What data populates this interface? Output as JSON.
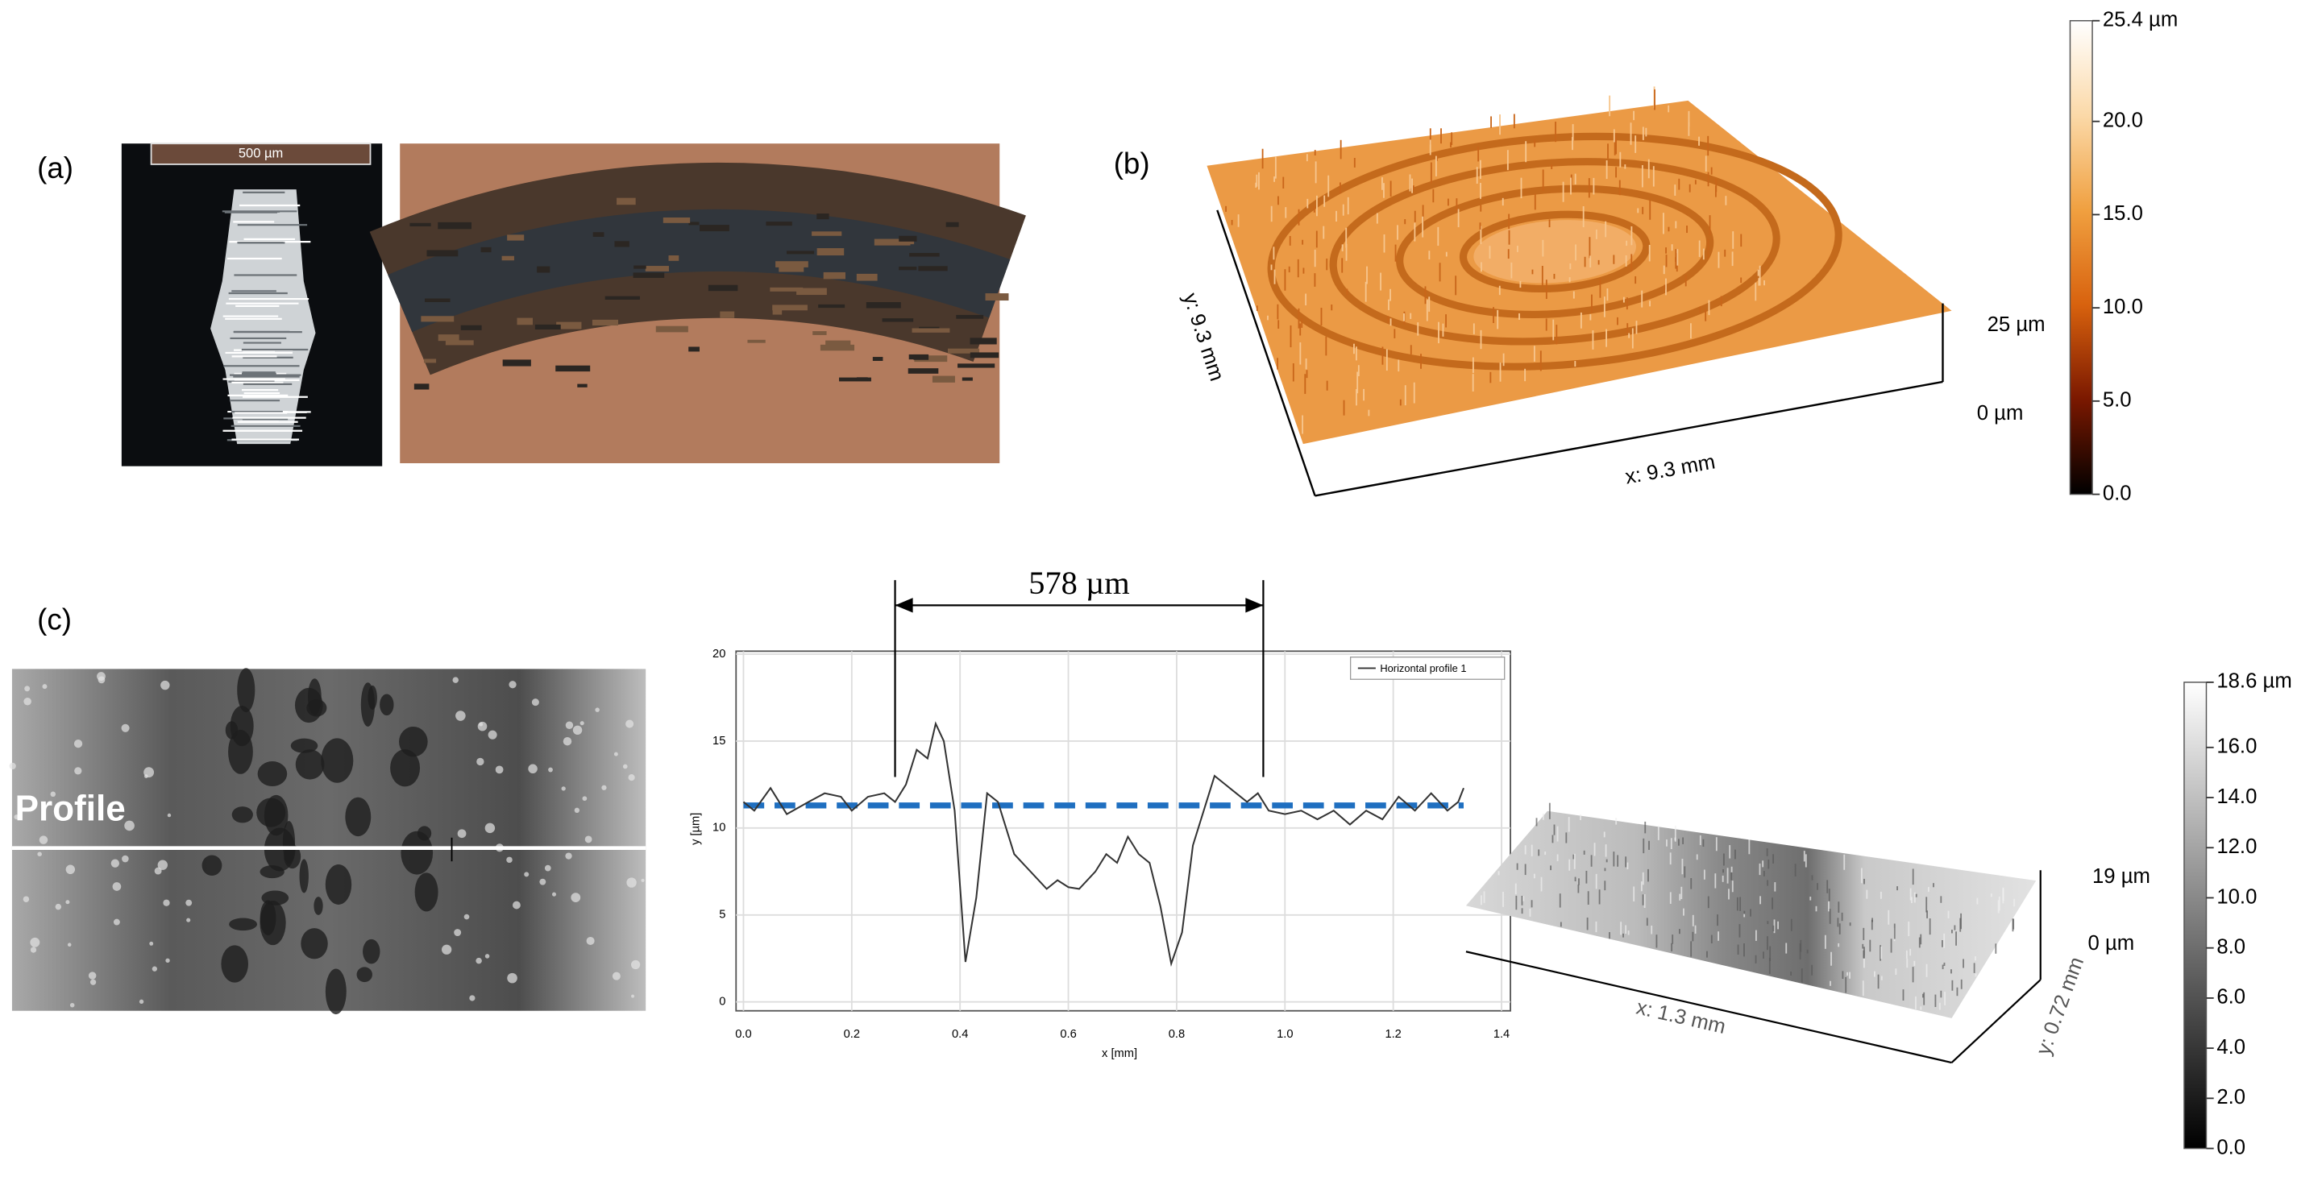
{
  "panel_a": {
    "label": "(a)",
    "scale_bar": "500 µm"
  },
  "panel_b": {
    "label": "(b)",
    "x_axis": "x: 9.3 mm",
    "y_axis": "y: 9.3 mm",
    "z_ticks": [
      "25 µm",
      "0 µm"
    ],
    "colorbar": {
      "range": [
        0,
        25.4
      ],
      "colors": [
        "#000000",
        "#7a1800",
        "#d8620e",
        "#f0a040",
        "#fbd9a8",
        "#ffffff"
      ],
      "ticks": [
        {
          "value": 25.4,
          "label": "25.4 µm"
        },
        {
          "value": 20,
          "label": "20.0"
        },
        {
          "value": 15,
          "label": "15.0"
        },
        {
          "value": 10,
          "label": "10.0"
        },
        {
          "value": 5,
          "label": "5.0"
        },
        {
          "value": 0,
          "label": "0.0"
        }
      ]
    }
  },
  "panel_c": {
    "label": "(c)",
    "profile_label": "Profile",
    "x_axis": "x: 1.3 mm",
    "y_axis": "y: 0.72 mm",
    "z_ticks": [
      "19 µm",
      "0 µm"
    ],
    "colorbar": {
      "range": [
        0,
        18.6
      ],
      "colors": [
        "#000000",
        "#ffffff"
      ],
      "ticks": [
        {
          "value": 18.6,
          "label": "18.6 µm"
        },
        {
          "value": 16,
          "label": "16.0"
        },
        {
          "value": 14,
          "label": "14.0"
        },
        {
          "value": 12,
          "label": "12.0"
        },
        {
          "value": 10,
          "label": "10.0"
        },
        {
          "value": 8,
          "label": "8.0"
        },
        {
          "value": 6,
          "label": "6.0"
        },
        {
          "value": 4,
          "label": "4.0"
        },
        {
          "value": 2,
          "label": "2.0"
        },
        {
          "value": 0,
          "label": "0.0"
        }
      ]
    }
  },
  "chart_data": {
    "type": "line",
    "xlabel": "x [mm]",
    "ylabel": "y [µm]",
    "grid": true,
    "legend": "upper right",
    "xlim": [
      0,
      1.4
    ],
    "ylim": [
      0,
      20
    ],
    "xticks": [
      {
        "value": 0,
        "label": "0.0"
      },
      {
        "value": 0.2,
        "label": "0.2"
      },
      {
        "value": 0.4,
        "label": "0.4"
      },
      {
        "value": 0.6,
        "label": "0.6"
      },
      {
        "value": 0.8,
        "label": "0.8"
      },
      {
        "value": 1,
        "label": "1.0"
      },
      {
        "value": 1.2,
        "label": "1.2"
      },
      {
        "value": 1.4,
        "label": "1.4"
      }
    ],
    "yticks": [
      0,
      5,
      10,
      15,
      20
    ],
    "x": [
      0,
      0.02,
      0.05,
      0.08,
      0.12,
      0.15,
      0.18,
      0.2,
      0.23,
      0.26,
      0.28,
      0.3,
      0.32,
      0.34,
      0.355,
      0.37,
      0.39,
      0.41,
      0.43,
      0.45,
      0.47,
      0.5,
      0.53,
      0.56,
      0.58,
      0.6,
      0.62,
      0.65,
      0.67,
      0.69,
      0.71,
      0.73,
      0.75,
      0.77,
      0.79,
      0.81,
      0.83,
      0.85,
      0.87,
      0.89,
      0.91,
      0.93,
      0.95,
      0.97,
      1,
      1.03,
      1.06,
      1.09,
      1.12,
      1.15,
      1.18,
      1.21,
      1.24,
      1.27,
      1.3,
      1.32,
      1.33
    ],
    "series": [
      {
        "name": "Horizontal profile 1",
        "color": "#333333",
        "values": [
          11.5,
          11,
          12.3,
          10.8,
          11.5,
          12,
          11.8,
          11,
          11.8,
          12,
          11.5,
          12.5,
          14.5,
          14,
          16,
          15,
          11,
          2.3,
          6,
          12,
          11.5,
          8.5,
          7.5,
          6.5,
          7,
          6.6,
          6.5,
          7.5,
          8.5,
          8,
          9.5,
          8.5,
          8,
          5.5,
          2.2,
          4,
          9,
          11,
          13,
          12.5,
          12,
          11.5,
          12,
          11,
          10.8,
          11,
          10.5,
          11,
          10.2,
          11,
          10.5,
          11.8,
          11,
          12,
          11,
          11.5,
          12.3
        ]
      }
    ],
    "reference_line": {
      "value": 11.3,
      "color": "#1f6fc0"
    },
    "annotation": {
      "text": "578 µm",
      "x": [
        0.28,
        0.96
      ]
    }
  }
}
